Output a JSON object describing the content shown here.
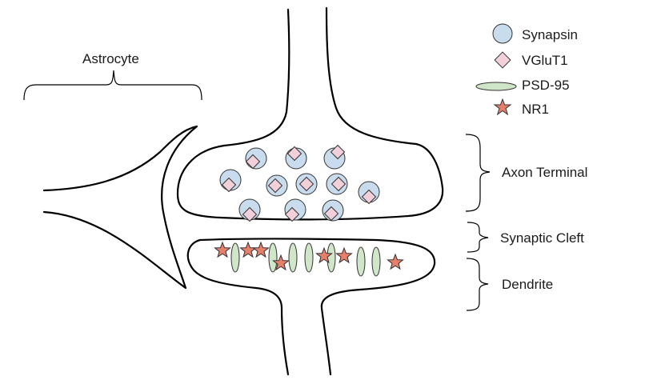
{
  "labels": {
    "astrocyte": "Astrocyte",
    "axon_terminal": "Axon Terminal",
    "synaptic_cleft": "Synaptic Cleft",
    "dendrite": "Dendrite"
  },
  "legend": [
    {
      "key": "synapsin",
      "label": "Synapsin",
      "color": "#c9dcee"
    },
    {
      "key": "vglut1",
      "label": "VGluT1",
      "color": "#f2d0da"
    },
    {
      "key": "psd95",
      "label": "PSD-95",
      "color": "#cfe6c8"
    },
    {
      "key": "nr1",
      "label": "NR1",
      "color": "#e7806b"
    }
  ]
}
